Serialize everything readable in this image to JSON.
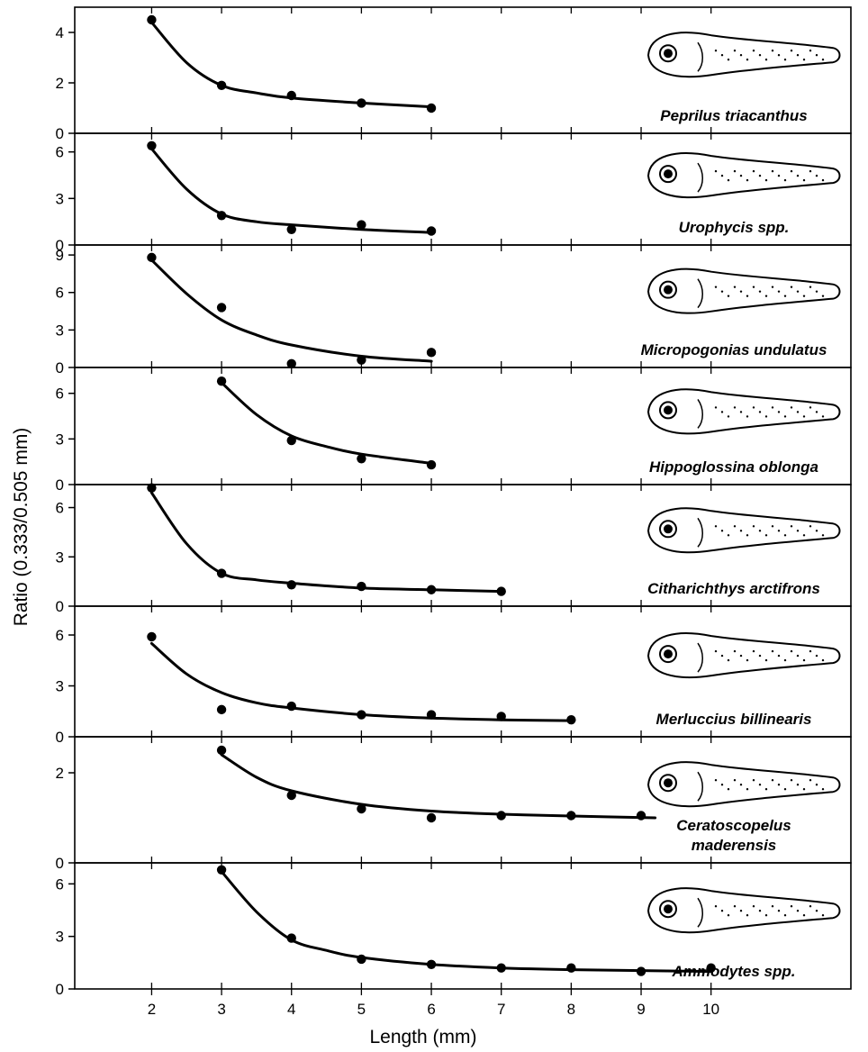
{
  "chart_data": {
    "type": "line",
    "xlabel": "Length (mm)",
    "ylabel": "Ratio (0.333/0.505 mm)",
    "x_ticks": [
      2,
      3,
      4,
      5,
      6,
      7,
      8,
      9,
      10
    ],
    "xlim": [
      0.9,
      12
    ],
    "panels": [
      {
        "name": "Peprilus triacanthus",
        "label_lines": [
          "Peprilus triacanthus"
        ],
        "ylim": [
          0,
          5.0
        ],
        "y_ticks": [
          0,
          2,
          4
        ],
        "points": [
          [
            2,
            4.5
          ],
          [
            3,
            1.9
          ],
          [
            4,
            1.5
          ],
          [
            5,
            1.2
          ],
          [
            6,
            1.0
          ]
        ],
        "curve": [
          [
            2,
            4.4
          ],
          [
            2.5,
            2.8
          ],
          [
            3,
            1.9
          ],
          [
            3.5,
            1.6
          ],
          [
            4,
            1.4
          ],
          [
            5,
            1.2
          ],
          [
            6,
            1.05
          ]
        ]
      },
      {
        "name": "Urophycis spp.",
        "label_lines": [
          "Urophycis spp."
        ],
        "ylim": [
          0,
          7.2
        ],
        "y_ticks": [
          0,
          3,
          6
        ],
        "points": [
          [
            2,
            6.4
          ],
          [
            3,
            1.9
          ],
          [
            4,
            1.0
          ],
          [
            5,
            1.3
          ],
          [
            6,
            0.9
          ]
        ],
        "curve": [
          [
            2,
            6.2
          ],
          [
            2.5,
            3.6
          ],
          [
            3,
            2.0
          ],
          [
            3.5,
            1.5
          ],
          [
            4,
            1.3
          ],
          [
            5,
            1.0
          ],
          [
            6,
            0.8
          ]
        ]
      },
      {
        "name": "Micropogonias undulatus",
        "label_lines": [
          "Micropogonias undulatus"
        ],
        "ylim": [
          0,
          9.8
        ],
        "y_ticks": [
          0,
          3,
          6,
          9
        ],
        "points": [
          [
            2,
            8.8
          ],
          [
            3,
            4.8
          ],
          [
            4,
            0.3
          ],
          [
            5,
            0.6
          ],
          [
            6,
            1.2
          ]
        ],
        "curve": [
          [
            2,
            8.6
          ],
          [
            2.5,
            5.9
          ],
          [
            3,
            3.8
          ],
          [
            3.5,
            2.6
          ],
          [
            4,
            1.8
          ],
          [
            5,
            0.9
          ],
          [
            6,
            0.5
          ]
        ]
      },
      {
        "name": "Hippoglossina oblonga",
        "label_lines": [
          "Hippoglossina oblonga"
        ],
        "ylim": [
          0,
          7.7
        ],
        "y_ticks": [
          0,
          3,
          6
        ],
        "points": [
          [
            3,
            6.8
          ],
          [
            4,
            2.9
          ],
          [
            5,
            1.7
          ],
          [
            6,
            1.3
          ]
        ],
        "curve": [
          [
            3,
            6.7
          ],
          [
            3.5,
            4.6
          ],
          [
            4,
            3.2
          ],
          [
            4.5,
            2.5
          ],
          [
            5,
            2.0
          ],
          [
            6,
            1.4
          ]
        ]
      },
      {
        "name": "Citharichthys arctifrons",
        "label_lines": [
          "Citharichthys arctifrons"
        ],
        "ylim": [
          0,
          7.4
        ],
        "y_ticks": [
          0,
          3,
          6
        ],
        "points": [
          [
            2,
            7.2
          ],
          [
            3,
            2.0
          ],
          [
            4,
            1.3
          ],
          [
            5,
            1.2
          ],
          [
            6,
            1.0
          ],
          [
            7,
            0.9
          ]
        ],
        "curve": [
          [
            2,
            6.9
          ],
          [
            2.5,
            3.8
          ],
          [
            3,
            2.0
          ],
          [
            3.5,
            1.6
          ],
          [
            4,
            1.4
          ],
          [
            5,
            1.1
          ],
          [
            6,
            1.0
          ],
          [
            7,
            0.9
          ]
        ]
      },
      {
        "name": "Merluccius billinearis",
        "label_lines": [
          "Merluccius billinearis"
        ],
        "ylim": [
          0,
          7.7
        ],
        "y_ticks": [
          0,
          3,
          6
        ],
        "points": [
          [
            2,
            5.9
          ],
          [
            3,
            1.6
          ],
          [
            4,
            1.8
          ],
          [
            5,
            1.3
          ],
          [
            6,
            1.3
          ],
          [
            7,
            1.2
          ],
          [
            8,
            1.0
          ]
        ],
        "curve": [
          [
            2,
            5.5
          ],
          [
            2.5,
            3.7
          ],
          [
            3,
            2.6
          ],
          [
            3.5,
            2.0
          ],
          [
            4,
            1.7
          ],
          [
            5,
            1.3
          ],
          [
            6,
            1.1
          ],
          [
            7,
            1.0
          ],
          [
            8,
            0.95
          ]
        ]
      },
      {
        "name": "Ceratoscopelus maderensis",
        "label_lines": [
          "Ceratoscopelus",
          "maderensis"
        ],
        "ylim": [
          0,
          2.8
        ],
        "y_ticks": [
          0,
          2
        ],
        "points": [
          [
            3,
            2.5
          ],
          [
            4,
            1.5
          ],
          [
            5,
            1.2
          ],
          [
            6,
            1.0
          ],
          [
            7,
            1.05
          ],
          [
            8,
            1.05
          ],
          [
            9,
            1.05
          ]
        ],
        "curve": [
          [
            3,
            2.4
          ],
          [
            3.5,
            1.9
          ],
          [
            4,
            1.6
          ],
          [
            5,
            1.3
          ],
          [
            6,
            1.15
          ],
          [
            7,
            1.08
          ],
          [
            8,
            1.04
          ],
          [
            9.2,
            1.0
          ]
        ]
      },
      {
        "name": "Ammodytes spp.",
        "label_lines": [
          "Ammodytes spp."
        ],
        "ylim": [
          0,
          7.2
        ],
        "y_ticks": [
          0,
          3,
          6
        ],
        "points": [
          [
            3,
            6.8
          ],
          [
            4,
            2.9
          ],
          [
            5,
            1.7
          ],
          [
            6,
            1.4
          ],
          [
            7,
            1.2
          ],
          [
            8,
            1.2
          ],
          [
            9,
            1.0
          ],
          [
            10,
            1.2
          ]
        ],
        "curve": [
          [
            3,
            6.7
          ],
          [
            3.5,
            4.4
          ],
          [
            4,
            2.8
          ],
          [
            4.5,
            2.2
          ],
          [
            5,
            1.8
          ],
          [
            6,
            1.4
          ],
          [
            7,
            1.2
          ],
          [
            8,
            1.1
          ],
          [
            9,
            1.05
          ],
          [
            10,
            1.0
          ]
        ]
      }
    ]
  },
  "labels": {
    "ylabel": "Ratio (0.333/0.505 mm)",
    "xlabel": "Length (mm)"
  }
}
